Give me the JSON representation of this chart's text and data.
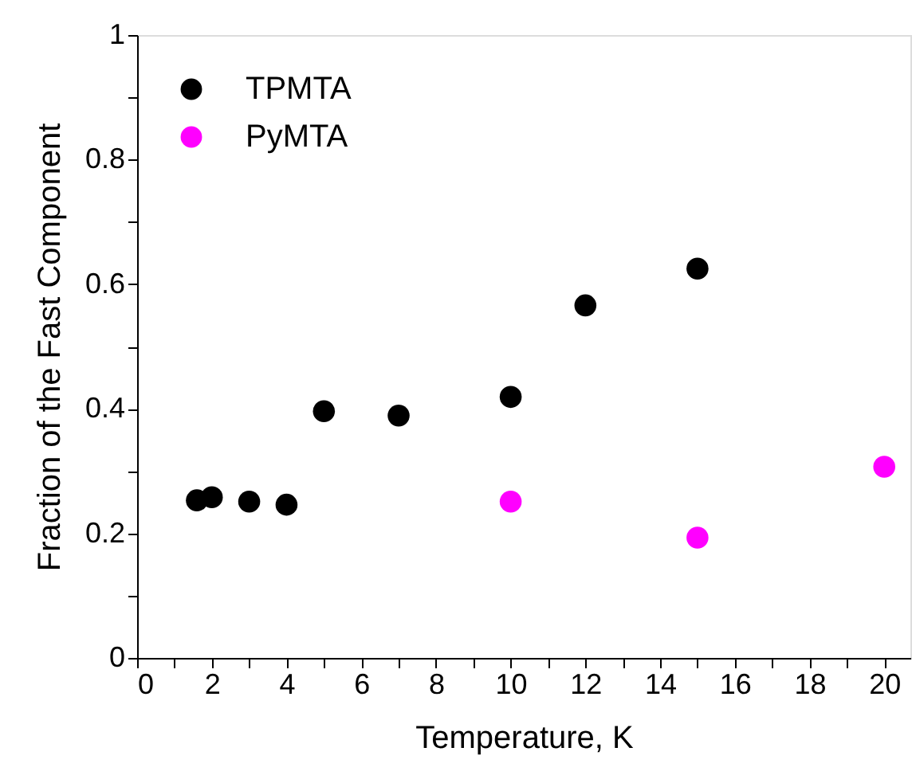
{
  "chart_data": {
    "type": "scatter",
    "xlabel": "Temperature, K",
    "ylabel": "Fraction of the Fast Component",
    "series": [
      {
        "name": "TPMTA",
        "color": "#000000",
        "x": [
          1.6,
          2,
          3,
          4,
          5,
          7,
          10,
          12,
          15
        ],
        "values": [
          0.253,
          0.258,
          0.251,
          0.246,
          0.396,
          0.389,
          0.419,
          0.566,
          0.625
        ]
      },
      {
        "name": "PyMTA",
        "color": "#ff00ff",
        "x": [
          10,
          15,
          20
        ],
        "values": [
          0.251,
          0.193,
          0.307
        ]
      }
    ],
    "xlim": [
      0,
      20.7
    ],
    "xticks": [
      0,
      {
        "value": 1,
        "label": null
      },
      2,
      {
        "value": 3,
        "label": null
      },
      4,
      {
        "value": 5,
        "label": null
      },
      6,
      {
        "value": 7,
        "label": null
      },
      8,
      {
        "value": 9,
        "label": null
      },
      10,
      {
        "value": 11,
        "label": null
      },
      12,
      {
        "value": 13,
        "label": null
      },
      14,
      {
        "value": 15,
        "label": null
      },
      16,
      {
        "value": 17,
        "label": null
      },
      18,
      {
        "value": 19,
        "label": null
      },
      20
    ],
    "ylim": [
      0,
      1
    ],
    "yticks": [
      0,
      {
        "value": 0.1,
        "label": null
      },
      0.2,
      {
        "value": 0.3,
        "label": null
      },
      0.4,
      {
        "value": 0.5,
        "label": null
      },
      0.6,
      {
        "value": 0.7,
        "label": null
      },
      0.8,
      {
        "value": 0.9,
        "label": null
      },
      1
    ],
    "marker": "circle",
    "legend": "top left",
    "grid": false
  }
}
